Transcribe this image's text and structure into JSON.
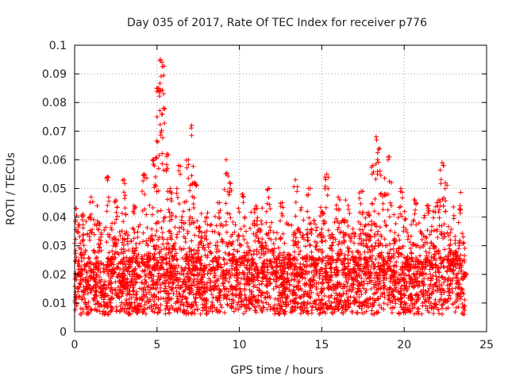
{
  "chart_data": {
    "type": "scatter",
    "title": "Day 035 of 2017, Rate Of TEC Index for receiver p776",
    "xlabel": "GPS time / hours",
    "ylabel": "ROTI / TECUs",
    "xlim": [
      0,
      25
    ],
    "ylim": [
      0,
      0.1
    ],
    "xticks": [
      0,
      5,
      10,
      15,
      20,
      25
    ],
    "xtick_labels": [
      "0",
      "5",
      "10",
      "15",
      "20",
      "25"
    ],
    "yticks": [
      0,
      0.01,
      0.02,
      0.03,
      0.04,
      0.05,
      0.06,
      0.07,
      0.08,
      0.09,
      0.1
    ],
    "ytick_labels": [
      "0",
      "0.01",
      "0.02",
      "0.03",
      "0.04",
      "0.05",
      "0.06",
      "0.07",
      "0.08",
      "0.09",
      "0.1"
    ],
    "grid": true,
    "marker": "+",
    "color": "#ff0000",
    "series": [
      {
        "name": "ROTI",
        "x": [
          0.1,
          0.3,
          0.5,
          0.8,
          1.0,
          1.2,
          1.5,
          1.8,
          2.0,
          2.3,
          2.5,
          2.8,
          3.0,
          3.3,
          3.6,
          3.9,
          4.2,
          4.5,
          4.8,
          5.0,
          5.1,
          5.2,
          5.3,
          5.4,
          5.6,
          5.8,
          6.0,
          6.3,
          6.6,
          6.9,
          7.1,
          7.3,
          7.6,
          8.0,
          8.4,
          8.8,
          9.2,
          9.4,
          9.8,
          10.2,
          10.6,
          11.0,
          11.4,
          11.8,
          12.2,
          12.6,
          13.0,
          13.4,
          13.8,
          14.2,
          14.6,
          15.0,
          15.3,
          15.6,
          16.0,
          16.3,
          16.6,
          17.0,
          17.4,
          17.8,
          18.1,
          18.3,
          18.5,
          18.8,
          19.1,
          19.4,
          19.8,
          20.2,
          20.6,
          21.0,
          21.4,
          21.8,
          22.1,
          22.3,
          22.5,
          22.8,
          23.1,
          23.4,
          23.7
        ],
        "y": [
          0.043,
          0.02,
          0.041,
          0.015,
          0.047,
          0.018,
          0.038,
          0.012,
          0.054,
          0.021,
          0.046,
          0.016,
          0.053,
          0.025,
          0.044,
          0.019,
          0.055,
          0.026,
          0.06,
          0.075,
          0.085,
          0.095,
          0.094,
          0.078,
          0.062,
          0.05,
          0.03,
          0.058,
          0.042,
          0.06,
          0.072,
          0.052,
          0.035,
          0.04,
          0.022,
          0.045,
          0.06,
          0.052,
          0.025,
          0.048,
          0.018,
          0.043,
          0.03,
          0.05,
          0.021,
          0.045,
          0.027,
          0.053,
          0.02,
          0.05,
          0.024,
          0.042,
          0.055,
          0.03,
          0.047,
          0.039,
          0.044,
          0.022,
          0.049,
          0.034,
          0.058,
          0.068,
          0.064,
          0.048,
          0.061,
          0.032,
          0.05,
          0.024,
          0.046,
          0.02,
          0.044,
          0.03,
          0.046,
          0.059,
          0.052,
          0.032,
          0.028,
          0.044,
          0.02
        ]
      }
    ]
  }
}
